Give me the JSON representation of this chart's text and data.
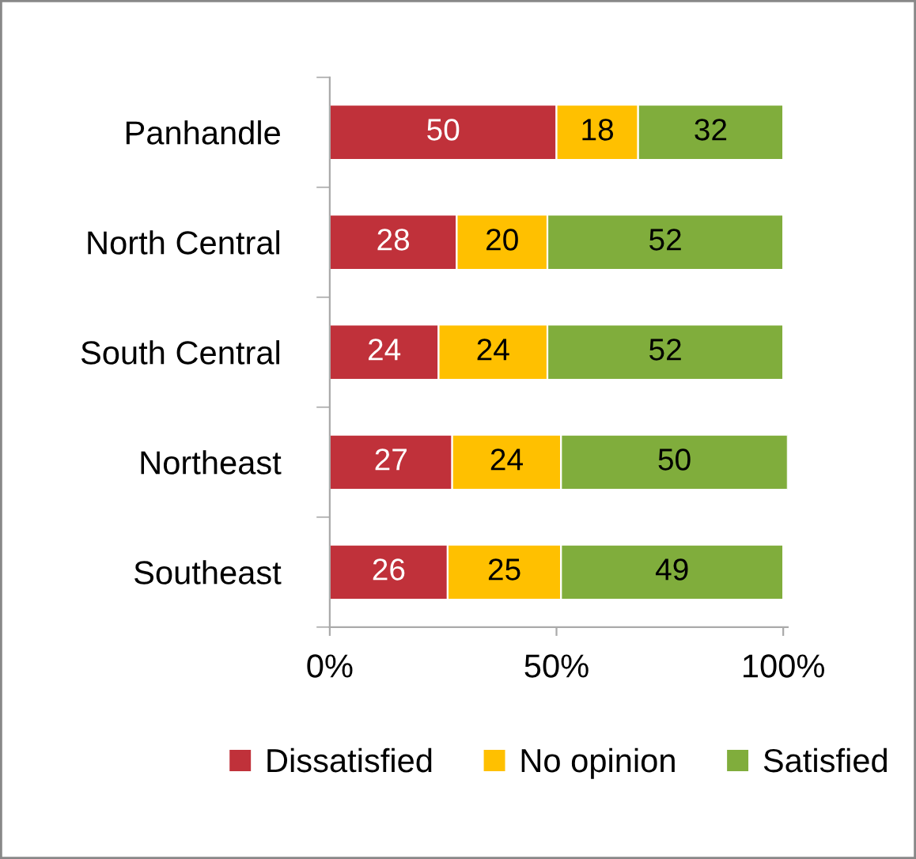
{
  "chart_data": {
    "type": "bar",
    "orientation": "horizontal",
    "stacked": true,
    "categories": [
      "Panhandle",
      "North Central",
      "South Central",
      "Northeast",
      "Southeast"
    ],
    "series": [
      {
        "name": "Dissatisfied",
        "color": "#c0313a",
        "values": [
          50,
          28,
          24,
          27,
          26
        ]
      },
      {
        "name": "No opinion",
        "color": "#ffc000",
        "values": [
          18,
          20,
          24,
          24,
          25
        ]
      },
      {
        "name": "Satisfied",
        "color": "#80ad3c",
        "values": [
          32,
          52,
          52,
          50,
          49
        ]
      }
    ],
    "xlim": [
      0,
      101
    ],
    "xticks": [
      {
        "value": 0,
        "label": "0%"
      },
      {
        "value": 50,
        "label": "50%"
      },
      {
        "value": 100,
        "label": "100%"
      }
    ],
    "data_labels": true,
    "legend": "bottom",
    "grid": false
  }
}
